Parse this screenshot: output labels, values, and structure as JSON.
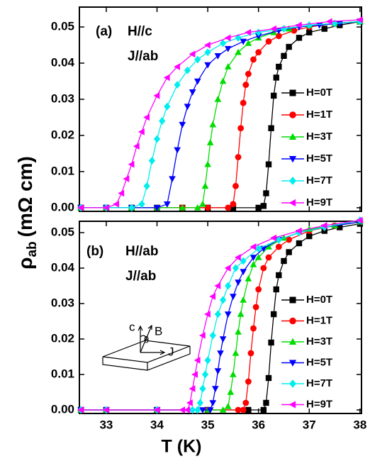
{
  "x_label": "T (K)",
  "y_label": {
    "symbol": "ρ",
    "subscript": "ab",
    "unit": "(mΩ cm)"
  },
  "inset_labels": [
    "c",
    "θ",
    "B",
    "J"
  ],
  "chart_data": [
    {
      "type": "line",
      "annotations": [
        "(a)",
        "H//c",
        "J//ab"
      ],
      "xlim": [
        32.47,
        38.03
      ],
      "ylim": [
        -0.001,
        0.0555
      ],
      "xticks": [
        33,
        34,
        35,
        36,
        37,
        38
      ],
      "show_xtick_labels": false,
      "yticks": [
        {
          "value": 0,
          "label": "0.00"
        },
        0.01,
        0.02,
        0.03,
        0.04,
        0.05
      ],
      "legend": "right",
      "series": [
        {
          "name": "H=0T",
          "color": "#000000",
          "marker": "square",
          "x": [
            32.5,
            33,
            33.5,
            34,
            34.5,
            35,
            35.5,
            36.0,
            36.1,
            36.15,
            36.2,
            36.25,
            36.3,
            36.35,
            36.4,
            36.5,
            36.6,
            36.8,
            37.0,
            37.3,
            37.6,
            38.0
          ],
          "values": [
            0,
            0,
            0,
            0,
            0,
            0,
            0,
            0,
            0.0005,
            0.004,
            0.012,
            0.022,
            0.031,
            0.036,
            0.039,
            0.042,
            0.0445,
            0.047,
            0.0485,
            0.0495,
            0.0505,
            0.0515
          ]
        },
        {
          "name": "H=1T",
          "color": "#ff0000",
          "marker": "circle",
          "x": [
            32.5,
            33,
            33.5,
            34,
            34.5,
            35,
            35.4,
            35.5,
            35.55,
            35.6,
            35.65,
            35.7,
            35.75,
            35.8,
            35.9,
            36.0,
            36.2,
            36.4,
            36.7,
            37.0,
            37.5,
            38.0
          ],
          "values": [
            0,
            0,
            0,
            0,
            0,
            0,
            0,
            0.001,
            0.006,
            0.014,
            0.022,
            0.029,
            0.034,
            0.037,
            0.041,
            0.043,
            0.046,
            0.0475,
            0.049,
            0.05,
            0.051,
            0.0515
          ]
        },
        {
          "name": "H=3T",
          "color": "#00dd00",
          "marker": "triangle-up",
          "x": [
            32.5,
            33,
            33.5,
            34,
            34.5,
            34.8,
            34.9,
            34.95,
            35.0,
            35.05,
            35.1,
            35.2,
            35.3,
            35.4,
            35.6,
            35.8,
            36.0,
            36.3,
            36.6,
            37.0,
            37.5,
            38.0
          ],
          "values": [
            0,
            0,
            0,
            0,
            0,
            0,
            0.001,
            0.006,
            0.012,
            0.018,
            0.023,
            0.03,
            0.035,
            0.039,
            0.043,
            0.0455,
            0.047,
            0.0485,
            0.0495,
            0.0505,
            0.051,
            0.0515
          ]
        },
        {
          "name": "H=5T",
          "color": "#0000ff",
          "marker": "triangle-down",
          "x": [
            32.5,
            33,
            33.5,
            34,
            34.2,
            34.3,
            34.4,
            34.5,
            34.6,
            34.7,
            34.8,
            35.0,
            35.2,
            35.4,
            35.7,
            36.0,
            36.4,
            36.8,
            37.2,
            37.6,
            38.0
          ],
          "values": [
            0,
            0,
            0,
            0,
            0.001,
            0.008,
            0.016,
            0.023,
            0.028,
            0.032,
            0.035,
            0.0395,
            0.042,
            0.044,
            0.046,
            0.0475,
            0.049,
            0.05,
            0.0505,
            0.051,
            0.0515
          ]
        },
        {
          "name": "H=7T",
          "color": "#00eeee",
          "marker": "diamond",
          "x": [
            32.5,
            33,
            33.5,
            33.7,
            33.8,
            33.9,
            34.0,
            34.1,
            34.2,
            34.4,
            34.6,
            34.8,
            35.0,
            35.3,
            35.6,
            36.0,
            36.5,
            37.0,
            37.5,
            38.0
          ],
          "values": [
            0,
            0,
            0,
            0.001,
            0.006,
            0.013,
            0.019,
            0.024,
            0.028,
            0.034,
            0.038,
            0.041,
            0.043,
            0.0455,
            0.047,
            0.0485,
            0.0495,
            0.0505,
            0.051,
            0.0515
          ]
        },
        {
          "name": "H=9T",
          "color": "#ff00ff",
          "marker": "triangle-left",
          "x": [
            32.5,
            33,
            33.2,
            33.3,
            33.4,
            33.5,
            33.6,
            33.7,
            33.8,
            34.0,
            34.2,
            34.4,
            34.7,
            35.0,
            35.4,
            35.8,
            36.3,
            36.8,
            37.4,
            38.0
          ],
          "values": [
            0,
            0,
            0.001,
            0.004,
            0.008,
            0.012,
            0.017,
            0.021,
            0.025,
            0.031,
            0.036,
            0.039,
            0.0425,
            0.045,
            0.047,
            0.0485,
            0.0495,
            0.0505,
            0.0515,
            0.052
          ]
        }
      ]
    },
    {
      "type": "line",
      "annotations": [
        "(b)",
        "H//ab",
        "J//ab"
      ],
      "xlim": [
        32.47,
        38.03
      ],
      "ylim": [
        -0.001,
        0.0532
      ],
      "xticks": [
        33,
        34,
        35,
        36,
        37,
        38
      ],
      "show_xtick_labels": true,
      "yticks": [
        {
          "value": 0,
          "label": "0.00"
        },
        0.01,
        0.02,
        0.03,
        0.04,
        0.05
      ],
      "legend": "right",
      "series": [
        {
          "name": "H=0T",
          "color": "#000000",
          "marker": "square",
          "x": [
            32.5,
            33,
            34,
            35,
            35.8,
            36.1,
            36.15,
            36.2,
            36.25,
            36.3,
            36.35,
            36.4,
            36.5,
            36.6,
            36.8,
            37.0,
            37.3,
            37.6,
            38.0
          ],
          "values": [
            0,
            0,
            0,
            0,
            0,
            0,
            0.002,
            0.009,
            0.019,
            0.027,
            0.034,
            0.038,
            0.042,
            0.0445,
            0.047,
            0.049,
            0.0505,
            0.0515,
            0.0525
          ]
        },
        {
          "name": "H=1T",
          "color": "#ff0000",
          "marker": "circle",
          "x": [
            32.5,
            33,
            34,
            35,
            35.6,
            35.7,
            35.75,
            35.8,
            35.85,
            35.9,
            35.95,
            36.0,
            36.1,
            36.2,
            36.4,
            36.6,
            37.0,
            37.5,
            38.0
          ],
          "values": [
            0,
            0,
            0,
            0,
            0,
            0,
            0.002,
            0.008,
            0.016,
            0.023,
            0.029,
            0.034,
            0.04,
            0.043,
            0.046,
            0.048,
            0.0505,
            0.052,
            0.053
          ]
        },
        {
          "name": "H=3T",
          "color": "#00dd00",
          "marker": "triangle-up",
          "x": [
            32.5,
            33,
            34,
            35,
            35.3,
            35.4,
            35.45,
            35.5,
            35.55,
            35.6,
            35.65,
            35.7,
            35.8,
            35.9,
            36.0,
            36.2,
            36.5,
            37.0,
            37.5,
            38.0
          ],
          "values": [
            0,
            0,
            0,
            0,
            0,
            0.001,
            0.005,
            0.01,
            0.016,
            0.022,
            0.027,
            0.031,
            0.037,
            0.041,
            0.043,
            0.046,
            0.0485,
            0.051,
            0.052,
            0.053
          ]
        },
        {
          "name": "H=5T",
          "color": "#0000ff",
          "marker": "triangle-down",
          "x": [
            32.5,
            33,
            34,
            34.9,
            35.05,
            35.1,
            35.15,
            35.2,
            35.25,
            35.3,
            35.4,
            35.5,
            35.6,
            35.7,
            35.9,
            36.1,
            36.4,
            36.8,
            37.3,
            38.0
          ],
          "values": [
            0,
            0,
            0,
            0,
            0,
            0.002,
            0.006,
            0.011,
            0.016,
            0.02,
            0.027,
            0.032,
            0.036,
            0.039,
            0.043,
            0.0455,
            0.048,
            0.05,
            0.0515,
            0.053
          ]
        },
        {
          "name": "H=7T",
          "color": "#00eeee",
          "marker": "diamond",
          "x": [
            32.5,
            33,
            34,
            34.7,
            34.8,
            34.85,
            34.9,
            34.95,
            35.0,
            35.1,
            35.2,
            35.3,
            35.4,
            35.55,
            35.7,
            36.0,
            36.4,
            36.8,
            37.3,
            38.0
          ],
          "values": [
            0,
            0,
            0,
            0,
            0,
            0.002,
            0.006,
            0.01,
            0.014,
            0.021,
            0.027,
            0.031,
            0.035,
            0.04,
            0.042,
            0.0455,
            0.048,
            0.05,
            0.0515,
            0.0535
          ]
        },
        {
          "name": "H=9T",
          "color": "#ff00ff",
          "marker": "triangle-left",
          "x": [
            32.5,
            33,
            34,
            34.5,
            34.6,
            34.65,
            34.7,
            34.75,
            34.8,
            34.9,
            35.0,
            35.1,
            35.2,
            35.4,
            35.6,
            35.9,
            36.3,
            36.8,
            37.3,
            38.0
          ],
          "values": [
            0,
            0,
            0,
            0,
            0,
            0.002,
            0.006,
            0.01,
            0.014,
            0.021,
            0.027,
            0.032,
            0.035,
            0.04,
            0.043,
            0.046,
            0.0485,
            0.0505,
            0.052,
            0.0535
          ]
        }
      ]
    }
  ]
}
